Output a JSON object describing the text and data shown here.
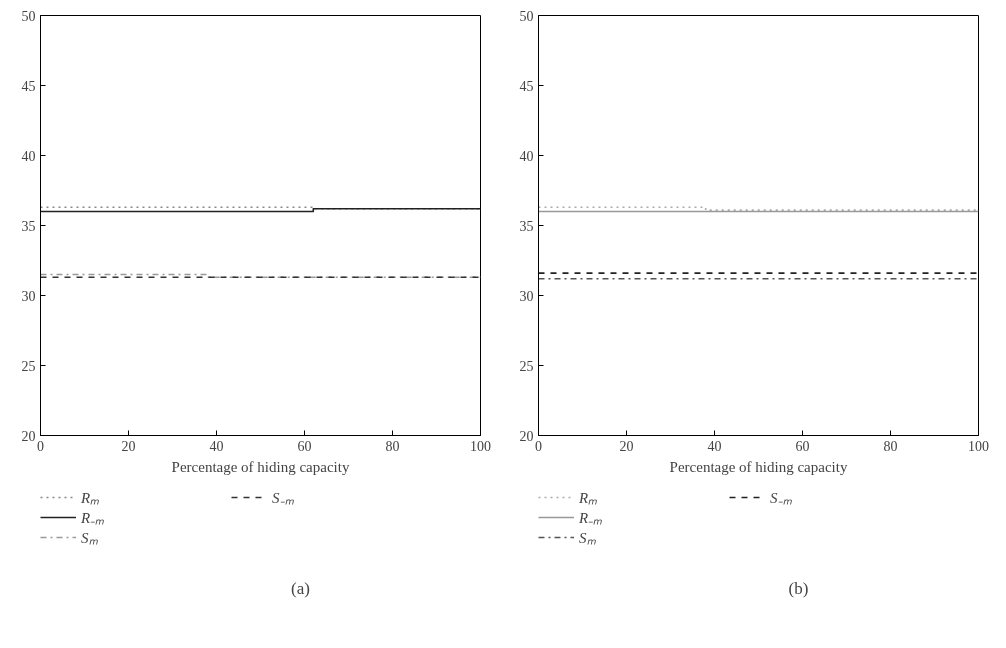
{
  "chart_data": [
    {
      "type": "line",
      "xlabel": "Percentage of hiding capacity",
      "annotations": [
        "(a)"
      ],
      "xlim": [
        0,
        100
      ],
      "ylim": [
        20,
        50
      ],
      "xticks": [
        0,
        20,
        40,
        60,
        80,
        100
      ],
      "yticks": [
        20,
        25,
        30,
        35,
        40,
        45,
        50
      ],
      "grid": false,
      "legend": "bottom",
      "marker": "none",
      "series": [
        {
          "name": "Rₘ",
          "color": "#888888",
          "line_style": "dotted",
          "x": [
            0,
            62,
            62,
            100
          ],
          "values": [
            36.3,
            36.3,
            36.2,
            36.2
          ]
        },
        {
          "name": "R₋ₘ",
          "color": "#222222",
          "line_style": "solid",
          "x": [
            0,
            62,
            62,
            100
          ],
          "values": [
            36.0,
            36.0,
            36.2,
            36.2
          ]
        },
        {
          "name": "Sₘ",
          "color": "#999999",
          "line_style": "dashdot",
          "x": [
            0,
            38,
            38,
            100
          ],
          "values": [
            31.5,
            31.5,
            31.3,
            31.3
          ]
        },
        {
          "name": "S₋ₘ",
          "color": "#333333",
          "line_style": "dashed",
          "x": [
            0,
            100
          ],
          "values": [
            31.3,
            31.3
          ]
        }
      ]
    },
    {
      "type": "line",
      "xlabel": "Percentage of hiding capacity",
      "annotations": [
        "(b)"
      ],
      "xlim": [
        0,
        100
      ],
      "ylim": [
        20,
        50
      ],
      "xticks": [
        0,
        20,
        40,
        60,
        80,
        100
      ],
      "yticks": [
        20,
        25,
        30,
        35,
        40,
        45,
        50
      ],
      "grid": false,
      "legend": "bottom",
      "marker": "none",
      "series": [
        {
          "name": "Rₘ",
          "color": "#aaaaaa",
          "line_style": "dotted",
          "x": [
            0,
            38,
            38,
            100
          ],
          "values": [
            36.3,
            36.3,
            36.1,
            36.1
          ]
        },
        {
          "name": "R₋ₘ",
          "color": "#999999",
          "line_style": "solid",
          "x": [
            0,
            100
          ],
          "values": [
            36.0,
            36.0
          ]
        },
        {
          "name": "Sₘ",
          "color": "#555555",
          "line_style": "dashdot",
          "x": [
            0,
            100
          ],
          "values": [
            31.2,
            31.2
          ]
        },
        {
          "name": "S₋ₘ",
          "color": "#222222",
          "line_style": "dashed",
          "x": [
            0,
            100
          ],
          "values": [
            31.6,
            31.6
          ]
        }
      ]
    }
  ]
}
